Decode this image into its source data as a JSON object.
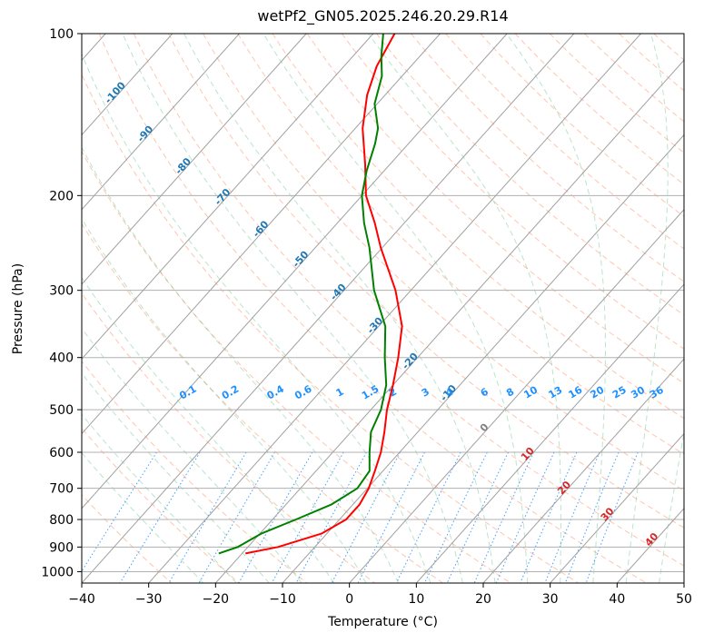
{
  "chart_data": {
    "type": "line",
    "subtype": "skew-T log-P diagram",
    "title": "wetPf2_GN05.2025.246.20.29.R14",
    "xlabel": "Temperature (°C)",
    "ylabel": "Pressure (hPa)",
    "xlim": [
      -40,
      50
    ],
    "ylim_hpa": [
      1050,
      100
    ],
    "x_ticks": [
      -40,
      -30,
      -20,
      -10,
      0,
      10,
      20,
      30,
      40,
      50
    ],
    "y_ticks": [
      100,
      200,
      300,
      400,
      500,
      600,
      700,
      800,
      900,
      1000
    ],
    "isotherms_degc": [
      -120,
      -110,
      -100,
      -90,
      -80,
      -70,
      -60,
      -50,
      -40,
      -30,
      -20,
      -10,
      0,
      10,
      20,
      30,
      40,
      50
    ],
    "dry_adiabat_labels": [
      {
        "label": "-100",
        "p": 130,
        "t": -100
      },
      {
        "label": "-90",
        "p": 155,
        "t": -90
      },
      {
        "label": "-80",
        "p": 178,
        "t": -80
      },
      {
        "label": "-70",
        "p": 203,
        "t": -70
      },
      {
        "label": "-60",
        "p": 233,
        "t": -60
      },
      {
        "label": "-50",
        "p": 265,
        "t": -50
      },
      {
        "label": "-40",
        "p": 305,
        "t": -40
      },
      {
        "label": "-30",
        "p": 352,
        "t": -30
      },
      {
        "label": "-20",
        "p": 410,
        "t": -20
      },
      {
        "label": "-10",
        "p": 470,
        "t": -10
      },
      {
        "label": "0",
        "p": 545,
        "t": 0
      },
      {
        "label": "10",
        "p": 610,
        "t": 10
      },
      {
        "label": "20",
        "p": 705,
        "t": 20
      },
      {
        "label": "30",
        "p": 790,
        "t": 30
      },
      {
        "label": "40",
        "p": 880,
        "t": 40
      }
    ],
    "mixing_ratio_labels": [
      "0.1",
      "0.2",
      "0.4",
      "0.6",
      "1",
      "1.5",
      "2",
      "3",
      "4",
      "6",
      "8",
      "10",
      "13",
      "16",
      "20",
      "25",
      "30",
      "36"
    ],
    "mixing_ratio_gkg": [
      0.1,
      0.2,
      0.4,
      0.6,
      1,
      1.5,
      2,
      3,
      4,
      6,
      8,
      10,
      13,
      16,
      20,
      25,
      30,
      36
    ],
    "series": [
      {
        "name": "Temperature",
        "color": "#ff0000",
        "points": [
          [
            925,
            -19.5
          ],
          [
            900,
            -15.5
          ],
          [
            850,
            -10.8
          ],
          [
            800,
            -9.0
          ],
          [
            750,
            -9.0
          ],
          [
            700,
            -9.8
          ],
          [
            650,
            -11.2
          ],
          [
            600,
            -12.8
          ],
          [
            550,
            -15.0
          ],
          [
            500,
            -17.6
          ],
          [
            450,
            -20.0
          ],
          [
            400,
            -22.9
          ],
          [
            350,
            -26.5
          ],
          [
            300,
            -32.3
          ],
          [
            250,
            -40.2
          ],
          [
            225,
            -44.4
          ],
          [
            200,
            -49.4
          ],
          [
            175,
            -53.7
          ],
          [
            150,
            -58.9
          ],
          [
            130,
            -62.7
          ],
          [
            115,
            -65.1
          ],
          [
            100,
            -66.8
          ]
        ]
      },
      {
        "name": "Dewpoint",
        "color": "#008000",
        "points": [
          [
            925,
            -23.5
          ],
          [
            900,
            -21.5
          ],
          [
            850,
            -19.8
          ],
          [
            800,
            -16.5
          ],
          [
            750,
            -13.2
          ],
          [
            700,
            -11.5
          ],
          [
            650,
            -12.0
          ],
          [
            600,
            -14.5
          ],
          [
            550,
            -17.0
          ],
          [
            500,
            -18.5
          ],
          [
            450,
            -21.0
          ],
          [
            400,
            -24.9
          ],
          [
            350,
            -29.0
          ],
          [
            300,
            -35.5
          ],
          [
            250,
            -41.9
          ],
          [
            225,
            -46.0
          ],
          [
            200,
            -50.0
          ],
          [
            180,
            -52.6
          ],
          [
            160,
            -55.0
          ],
          [
            150,
            -56.6
          ],
          [
            135,
            -60.4
          ],
          [
            120,
            -63.0
          ],
          [
            110,
            -65.8
          ],
          [
            100,
            -68.5
          ]
        ]
      }
    ]
  }
}
